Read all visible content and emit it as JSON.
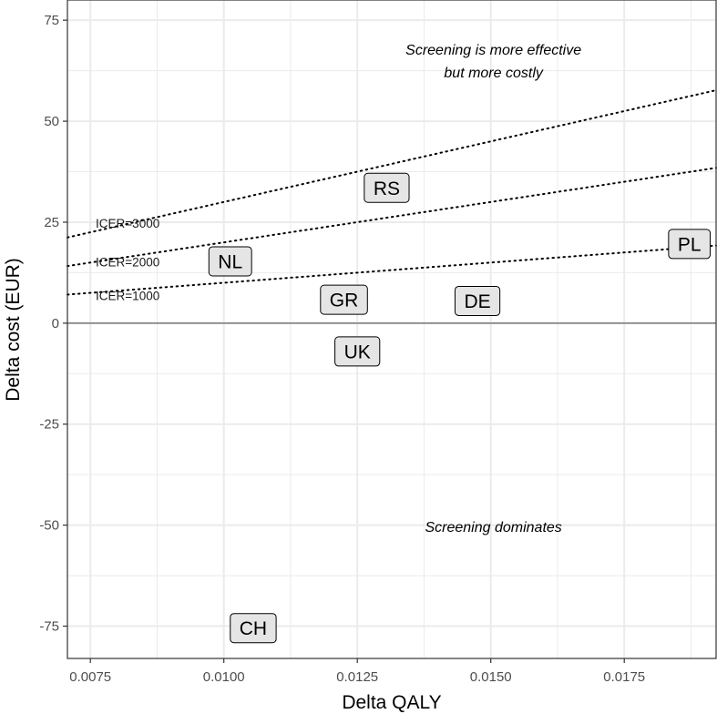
{
  "chart_data": {
    "type": "scatter",
    "title": "",
    "xlabel": "Delta QALY",
    "ylabel": "Delta cost (EUR)",
    "xlim": [
      0.00707,
      0.01922
    ],
    "ylim": [
      -83,
      80
    ],
    "x_ticks": [
      0.0075,
      0.01,
      0.0125,
      0.015,
      0.0175
    ],
    "x_tick_labels": [
      "0.0075",
      "0.0100",
      "0.0125",
      "0.0150",
      "0.0175"
    ],
    "y_ticks": [
      -75,
      -50,
      -25,
      0,
      25,
      50,
      75
    ],
    "y_tick_labels": [
      "-75",
      "-50",
      "-25",
      "0",
      "25",
      "50",
      "75"
    ],
    "grid": true,
    "points": [
      {
        "label": "RS",
        "x": 0.01305,
        "y": 33.5
      },
      {
        "label": "NL",
        "x": 0.01012,
        "y": 15.3
      },
      {
        "label": "PL",
        "x": 0.01872,
        "y": 19.6
      },
      {
        "label": "GR",
        "x": 0.01225,
        "y": 5.8
      },
      {
        "label": "DE",
        "x": 0.01475,
        "y": 5.5
      },
      {
        "label": "UK",
        "x": 0.0125,
        "y": -7.0
      },
      {
        "label": "CH",
        "x": 0.01055,
        "y": -75.5
      }
    ],
    "reference_lines": [
      {
        "label": "ICER=3000",
        "slope": 3000,
        "label_x": 0.0076,
        "label_y": 24.8
      },
      {
        "label": "ICER=2000",
        "slope": 2000,
        "label_x": 0.0076,
        "label_y": 15.2
      },
      {
        "label": "ICER=1000",
        "slope": 1000,
        "label_x": 0.0076,
        "label_y": 6.8
      }
    ],
    "annotations": [
      {
        "lines": [
          "Screening is more effective",
          "but more costly"
        ],
        "x": 0.01505,
        "y": 64.8
      },
      {
        "lines": [
          "Screening dominates"
        ],
        "x": 0.01505,
        "y": -50.5
      }
    ]
  }
}
